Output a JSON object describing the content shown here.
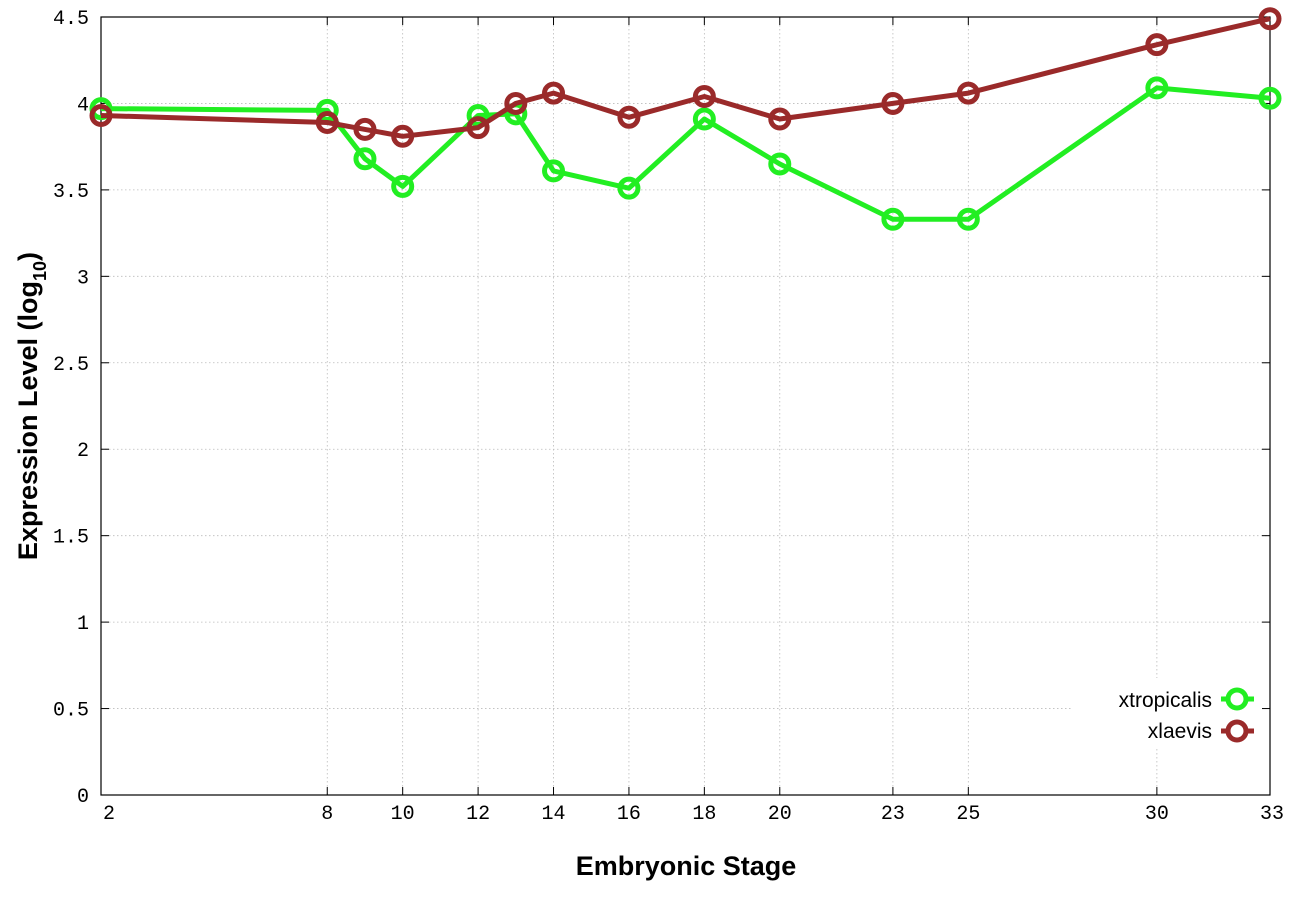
{
  "chart_data": {
    "type": "line",
    "title": "",
    "xlabel": "Embryonic Stage",
    "ylabel": "Expression Level (log",
    "ylabel_subscript": "10",
    "ylabel_suffix": ")",
    "x": [
      2,
      8,
      9,
      10,
      12,
      13,
      14,
      16,
      18,
      20,
      23,
      25,
      30,
      33
    ],
    "xticks": [
      2,
      8,
      10,
      12,
      14,
      16,
      18,
      20,
      23,
      25,
      30,
      33
    ],
    "xtick_labels": [
      "2",
      "8",
      "10",
      "12",
      "14",
      "16",
      "18",
      "20",
      "23",
      "25",
      "30",
      "33"
    ],
    "yticks": [
      0,
      0.5,
      1,
      1.5,
      2,
      2.5,
      3,
      3.5,
      4,
      4.5
    ],
    "ytick_labels": [
      "0",
      "0.5",
      "1",
      "1.5",
      "2",
      "2.5",
      "3",
      "3.5",
      "4",
      "4.5"
    ],
    "xlim": [
      2,
      33
    ],
    "ylim": [
      0,
      4.5
    ],
    "grid": true,
    "legend_position": "bottom-right",
    "series": [
      {
        "name": "xtropicalis",
        "color": "#22ee22",
        "values": [
          3.97,
          3.96,
          3.68,
          3.52,
          3.93,
          3.94,
          3.61,
          3.51,
          3.91,
          3.65,
          3.33,
          3.33,
          4.09,
          4.03
        ]
      },
      {
        "name": "xlaevis",
        "color": "#9a2a2a",
        "values": [
          3.93,
          3.89,
          3.85,
          3.81,
          3.86,
          4.0,
          4.06,
          3.92,
          4.04,
          3.91,
          4.0,
          4.06,
          4.34,
          4.49
        ]
      }
    ]
  }
}
